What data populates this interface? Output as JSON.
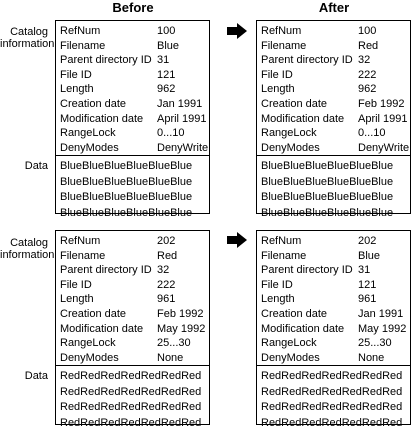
{
  "headers": {
    "before": "Before",
    "after": "After"
  },
  "labels": {
    "catalog_line1": "Catalog",
    "catalog_line2": "information",
    "data": "Data"
  },
  "field_names": [
    "RefNum",
    "Filename",
    "Parent directory ID",
    "File ID",
    "Length",
    "Creation date",
    "Modification date",
    "RangeLock",
    "DenyModes"
  ],
  "top_before": {
    "values": [
      "100",
      "Blue",
      "31",
      "121",
      "962",
      "Jan 1991",
      "April 1991",
      "0...10",
      "DenyWrite"
    ],
    "data": [
      "BlueBlueBlueBlueBlueBlue",
      "BlueBlueBlueBlueBlueBlue",
      "BlueBlueBlueBlueBlueBlue",
      "BlueBlueBlueBlueBlueBlue"
    ]
  },
  "top_after": {
    "values": [
      "100",
      "Red",
      "32",
      "222",
      "962",
      "Feb 1992",
      "April 1991",
      "0...10",
      "DenyWrite"
    ],
    "data": [
      "BlueBlueBlueBlueBlueBlue",
      "BlueBlueBlueBlueBlueBlue",
      "BlueBlueBlueBlueBlueBlue",
      "BlueBlueBlueBlueBlueBlue"
    ]
  },
  "bottom_before": {
    "values": [
      "202",
      "Red",
      "32",
      "222",
      "961",
      "Feb 1992",
      "May 1992",
      "25...30",
      "None"
    ],
    "data": [
      "RedRedRedRedRedRedRed",
      "RedRedRedRedRedRedRed",
      "RedRedRedRedRedRedRed",
      "RedRedRedRedRedRedRed"
    ]
  },
  "bottom_after": {
    "values": [
      "202",
      "Blue",
      "31",
      "121",
      "961",
      "Jan 1991",
      "May 1992",
      "25...30",
      "None"
    ],
    "data": [
      "RedRedRedRedRedRedRed",
      "RedRedRedRedRedRedRed",
      "RedRedRedRedRedRedRed",
      "RedRedRedRedRedRedRed"
    ]
  },
  "icons": {
    "arrow": "right-arrow-icon"
  }
}
